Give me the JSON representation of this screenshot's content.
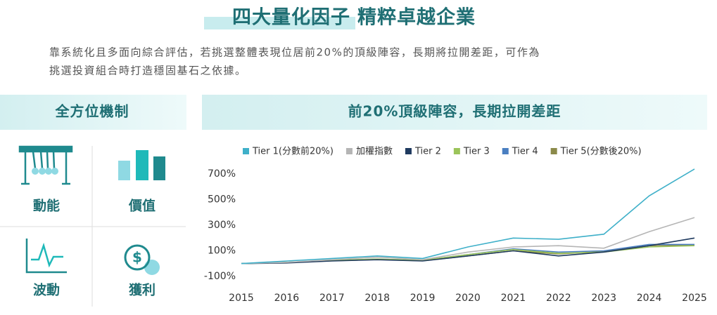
{
  "header": {
    "title_highlight": "四大量化因子",
    "title_rest": "精粹卓越企業",
    "description": [
      "靠系統化且多面向綜合評估，若挑選整體表現位居前20%的頂級陣容，長期將拉開差距，可作為",
      "挑選投資組合時打造穩固基石之依據。"
    ]
  },
  "left_panel": {
    "title": "全方位機制",
    "factors": [
      "動能",
      "價值",
      "波動",
      "獲利"
    ]
  },
  "chart_data": {
    "type": "line",
    "title": "前20%頂級陣容，長期拉開差距",
    "x": [
      2015,
      2016,
      2017,
      2018,
      2019,
      2020,
      2021,
      2022,
      2023,
      2024,
      2025
    ],
    "series": [
      {
        "name": "Tier 1(分數前20%)",
        "color": "#3fb0c9",
        "values": [
          0,
          20,
          40,
          60,
          40,
          130,
          200,
          190,
          230,
          530,
          740
        ]
      },
      {
        "name": "加權指數",
        "color": "#b5b5b5",
        "values": [
          0,
          10,
          30,
          50,
          30,
          90,
          130,
          140,
          120,
          250,
          360
        ]
      },
      {
        "name": "Tier 2",
        "color": "#1f3a5f",
        "values": [
          0,
          5,
          20,
          30,
          20,
          60,
          100,
          60,
          90,
          140,
          200
        ]
      },
      {
        "name": "Tier 3",
        "color": "#9bc45a",
        "values": [
          0,
          10,
          25,
          35,
          25,
          70,
          110,
          80,
          90,
          130,
          140
        ]
      },
      {
        "name": "Tier 4",
        "color": "#4a7fc1",
        "values": [
          0,
          10,
          25,
          35,
          25,
          70,
          115,
          90,
          100,
          150,
          150
        ]
      },
      {
        "name": "Tier 5(分數後20%)",
        "color": "#8b8a4a",
        "values": [
          0,
          8,
          22,
          32,
          22,
          60,
          100,
          75,
          95,
          140,
          145
        ]
      }
    ],
    "xlim": [
      2015,
      2025
    ],
    "xticks": [
      2015,
      2016,
      2017,
      2018,
      2019,
      2020,
      2021,
      2022,
      2023,
      2024,
      2025
    ],
    "ylim": [
      -150,
      800
    ],
    "yticks": [
      {
        "value": -100,
        "label": "-100%"
      },
      {
        "value": 100,
        "label": "100%"
      },
      {
        "value": 300,
        "label": "300%"
      },
      {
        "value": 500,
        "label": "500%"
      },
      {
        "value": 700,
        "label": "700%"
      }
    ]
  }
}
